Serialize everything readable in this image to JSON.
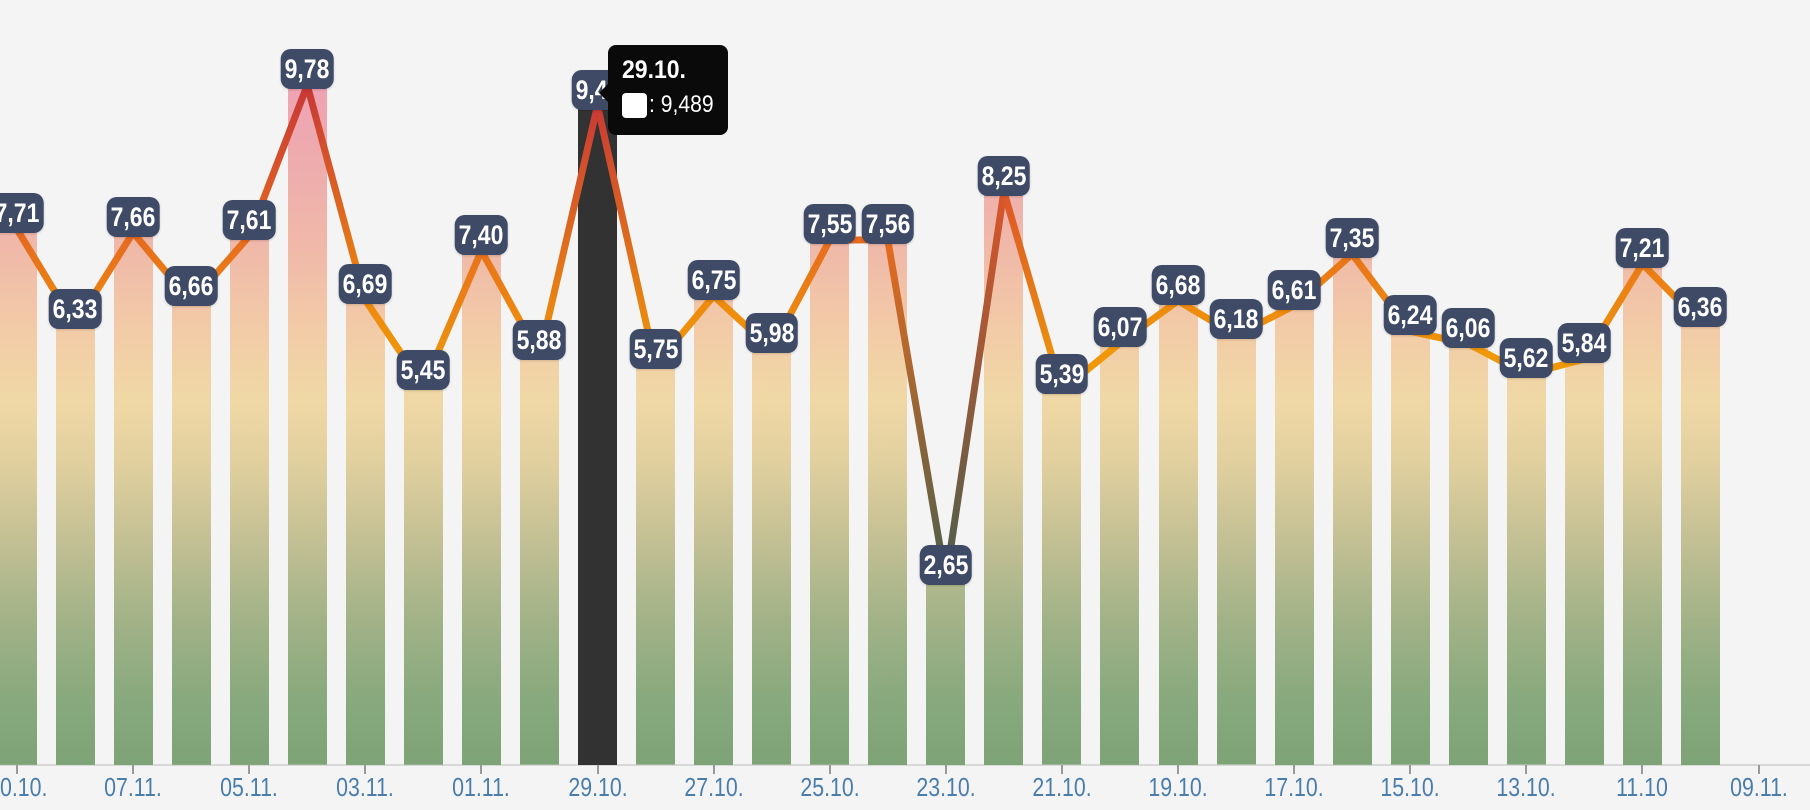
{
  "chart_data": {
    "type": "bar",
    "subtype": "bar-with-line-overlay-and-value-badges",
    "title": "",
    "xlabel": "",
    "ylabel": "",
    "ylim": [
      0,
      10.8
    ],
    "grid": false,
    "legend": "none",
    "bars": [
      {
        "label": "7,71",
        "value": 7.71
      },
      {
        "label": "6,33",
        "value": 6.33
      },
      {
        "label": "7,66",
        "value": 7.66
      },
      {
        "label": "6,66",
        "value": 6.66
      },
      {
        "label": "7,61",
        "value": 7.61
      },
      {
        "label": "9,78",
        "value": 9.78
      },
      {
        "label": "6,69",
        "value": 6.69
      },
      {
        "label": "5,45",
        "value": 5.45
      },
      {
        "label": "7,40",
        "value": 7.4
      },
      {
        "label": "5,88",
        "value": 5.88
      },
      {
        "label": "9,49",
        "value": 9.489,
        "selected": true
      },
      {
        "label": "5,75",
        "value": 5.75
      },
      {
        "label": "6,75",
        "value": 6.75
      },
      {
        "label": "5,98",
        "value": 5.98
      },
      {
        "label": "7,55",
        "value": 7.55
      },
      {
        "label": "7,56",
        "value": 7.56
      },
      {
        "label": "2,65",
        "value": 2.65
      },
      {
        "label": "8,25",
        "value": 8.25
      },
      {
        "label": "5,39",
        "value": 5.39
      },
      {
        "label": "6,07",
        "value": 6.07
      },
      {
        "label": "6,68",
        "value": 6.68
      },
      {
        "label": "6,18",
        "value": 6.18
      },
      {
        "label": "6,61",
        "value": 6.61
      },
      {
        "label": "7,35",
        "value": 7.35
      },
      {
        "label": "6,24",
        "value": 6.24
      },
      {
        "label": "6,06",
        "value": 6.06
      },
      {
        "label": "5,62",
        "value": 5.62
      },
      {
        "label": "5,84",
        "value": 5.84
      },
      {
        "label": "7,21",
        "value": 7.21
      },
      {
        "label": "6,36",
        "value": 6.36
      }
    ],
    "x_tick_labels": [
      "0.10.",
      "07.11.",
      "05.11.",
      "03.11.",
      "01.11.",
      "29.10.",
      "27.10.",
      "25.10.",
      "23.10.",
      "21.10.",
      "19.10.",
      "17.10.",
      "15.10.",
      "13.10.",
      "11.10",
      "09.11."
    ],
    "x_tick_every_n_bars": 2,
    "highlighted_bar_index": 10
  },
  "tooltip": {
    "title": "29.10.",
    "value_text": ": 9,489"
  },
  "colors": {
    "background": "#f4f4f5",
    "badge_bg": "#3e4a66",
    "badge_text": "#ffffff",
    "axis_label": "#4b7dab",
    "axis_line": "#d8d8d8",
    "tick": "#9a9a9a",
    "selected_bar": "#323232",
    "tooltip_bg": "#0a0a0a",
    "tooltip_text": "#ffffff",
    "bar_gradient_top_to_bottom": [
      "#efa2b4",
      "#eeadad",
      "#f0b9a9",
      "#f2cba7",
      "#f0d8a6",
      "#e2d09f",
      "#c3c094",
      "#a2b287",
      "#87a97d",
      "#7ea377"
    ],
    "line_color_stops": [
      [
        2.6,
        "#485e4d"
      ],
      [
        4.2,
        "#877639"
      ],
      [
        5.2,
        "#ed9e08"
      ],
      [
        6.0,
        "#f09609"
      ],
      [
        6.9,
        "#ee8511"
      ],
      [
        7.6,
        "#e56920"
      ],
      [
        8.4,
        "#d9502c"
      ],
      [
        9.4,
        "#ca3a36"
      ],
      [
        10.0,
        "#c53638"
      ]
    ]
  }
}
